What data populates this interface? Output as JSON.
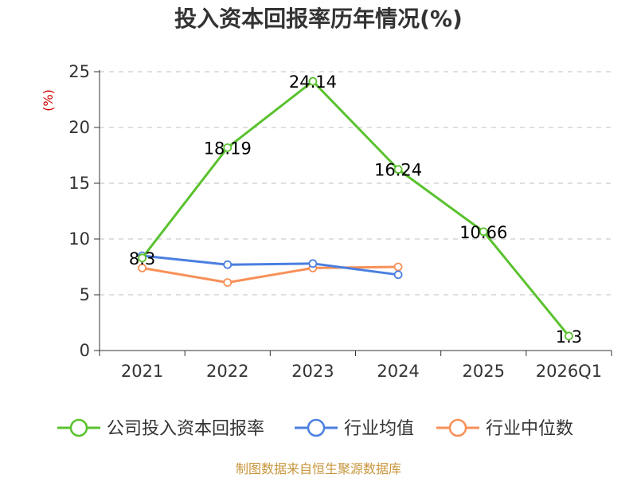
{
  "chart_data": {
    "type": "line",
    "title": "投入资本回报率历年情况(%)",
    "ylabel": "(%)",
    "xlabel": "",
    "categories": [
      "2021",
      "2022",
      "2023",
      "2024",
      "2025",
      "2026Q1"
    ],
    "ylim": [
      0,
      25
    ],
    "yticks": [
      0,
      5,
      10,
      15,
      20,
      25
    ],
    "grid": true,
    "legend_position": "bottom",
    "series": [
      {
        "name": "公司投入资本回报率",
        "color": "#5ac22e",
        "values": [
          8.3,
          18.19,
          24.14,
          16.24,
          10.66,
          1.3
        ],
        "labels": [
          "8.3",
          "18.19",
          "24.14",
          "16.24",
          "10.66",
          "1.3"
        ]
      },
      {
        "name": "行业均值",
        "color": "#4a7fe0",
        "values": [
          8.5,
          7.7,
          7.8,
          6.8,
          null,
          null
        ]
      },
      {
        "name": "行业中位数",
        "color": "#f79058",
        "values": [
          7.4,
          6.1,
          7.4,
          7.5,
          null,
          null
        ]
      }
    ]
  },
  "source": "制图数据来自恒生聚源数据库"
}
